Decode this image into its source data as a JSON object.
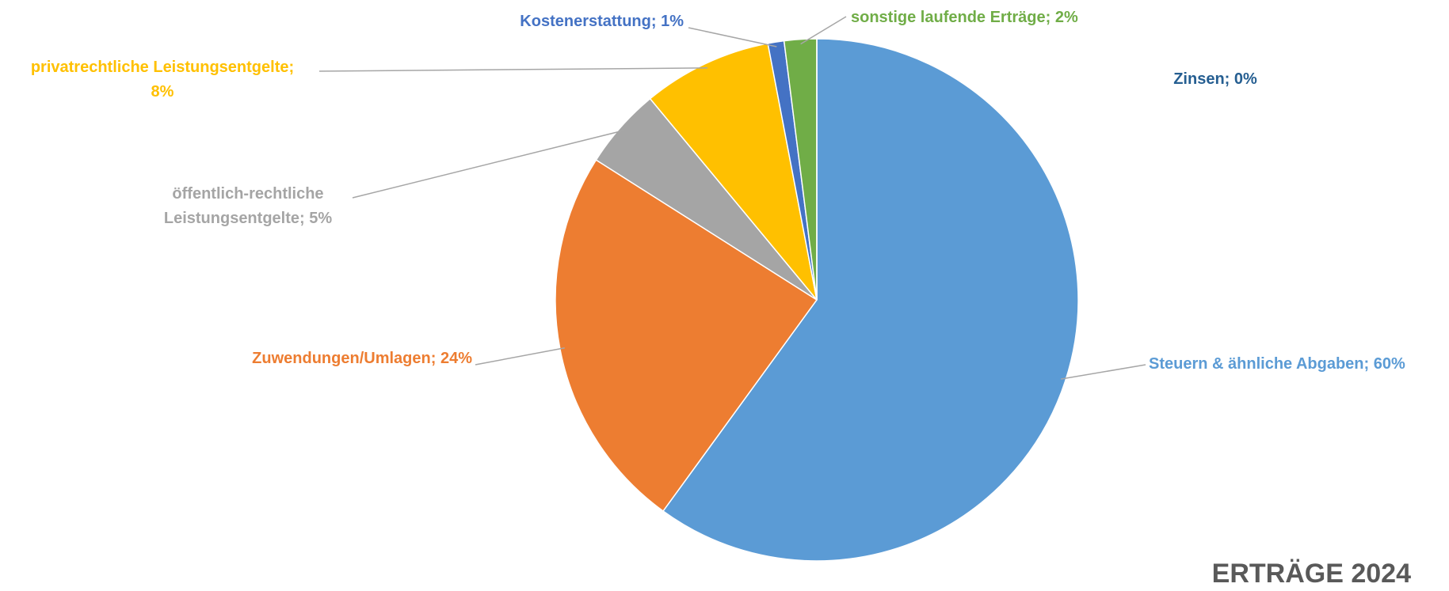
{
  "chart_data": {
    "type": "pie",
    "title": "ERTRÄGE 2024",
    "categories": [
      "Steuern & ähnliche Abgaben",
      "Zuwendungen/Umlagen",
      "öffentlich-rechtliche Leistungsentgelte",
      "privatrechtliche Leistungsentgelte",
      "Kostenerstattung",
      "sonstige laufende Erträge",
      "Zinsen"
    ],
    "values": [
      60,
      24,
      5,
      8,
      1,
      2,
      0
    ],
    "value_labels": [
      "60%",
      "24%",
      "5%",
      "8%",
      "1%",
      "2%",
      "0%"
    ],
    "label_separator": ";",
    "colors": [
      "#5b9bd5",
      "#ed7d31",
      "#a5a5a5",
      "#ffc000",
      "#4472c4",
      "#70ad47",
      "#255e91"
    ]
  }
}
